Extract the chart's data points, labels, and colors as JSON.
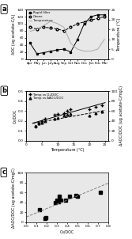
{
  "panel_a": {
    "months": [
      "Apr",
      "May",
      "Jun",
      "July",
      "Aug",
      "Sep",
      "Oct",
      "Nov",
      "Dec",
      "Jan",
      "Feb",
      "Mar"
    ],
    "rapid_filter": [
      45,
      15,
      18,
      22,
      26,
      28,
      20,
      55,
      100,
      120,
      125,
      125
    ],
    "ozono": [
      90,
      85,
      90,
      88,
      85,
      80,
      90,
      100,
      105,
      110,
      115,
      120
    ],
    "temperature": [
      14,
      15,
      17,
      19,
      18,
      16,
      8,
      5,
      4,
      4,
      5,
      10
    ],
    "ylabel_left": "AOC (ug acetate-C/L)",
    "ylabel_right": "Temperature (°C)",
    "ylim_left": [
      0,
      140
    ],
    "ylim_right": [
      0,
      25
    ],
    "yticks_left": [
      0,
      20,
      40,
      60,
      80,
      100,
      120,
      140
    ],
    "yticks_right": [
      0,
      5,
      10,
      15,
      20,
      25
    ],
    "legend": [
      "Rapid filter",
      "Ozone",
      "Temperature"
    ]
  },
  "panel_b": {
    "temp_x": [
      3,
      4,
      5,
      6,
      9,
      10,
      12,
      13,
      14,
      20,
      22,
      24
    ],
    "o3_doc": [
      0.14,
      0.18,
      0.2,
      0.22,
      0.26,
      0.27,
      0.28,
      0.3,
      0.32,
      0.32,
      0.34,
      0.36
    ],
    "aoc_doc": [
      30,
      35,
      36,
      40,
      45,
      46,
      50,
      52,
      54,
      50,
      56,
      58
    ],
    "ylabel_left": "O₃/DOC",
    "ylabel_right": "ΔAOC/DOC (ug acetate-C/mgC)",
    "xlabel": "Temperature (°C)",
    "ylim_left": [
      0.0,
      0.5
    ],
    "ylim_right": [
      0,
      100
    ],
    "yticks_left": [
      0.0,
      0.1,
      0.2,
      0.3,
      0.4,
      0.5
    ],
    "yticks_right": [
      0,
      20,
      40,
      60,
      80,
      100
    ],
    "xticks": [
      0,
      5,
      10,
      15,
      20,
      25
    ],
    "legend": [
      "Temp vs O₃/DOC",
      "Temp vs ΔAOC/DOC"
    ]
  },
  "panel_c": {
    "x": [
      0.13,
      0.18,
      0.19,
      0.28,
      0.3,
      0.31,
      0.32,
      0.34,
      0.38,
      0.42,
      0.48,
      0.5,
      0.72
    ],
    "y": [
      25,
      8,
      9,
      40,
      44,
      42,
      52,
      44,
      45,
      52,
      54,
      53,
      60
    ],
    "ylabel": "ΔAOC/DOC (ug acetate-C/mgC)",
    "xlabel": "O₃/DOC",
    "ylim": [
      0,
      100
    ],
    "xlim": [
      0.0,
      0.8
    ],
    "yticks": [
      0,
      20,
      40,
      60,
      80,
      100
    ],
    "xticks": [
      0.0,
      0.1,
      0.2,
      0.3,
      0.4,
      0.5,
      0.6,
      0.7,
      0.8
    ]
  },
  "bg_color": "#e8e8e8"
}
